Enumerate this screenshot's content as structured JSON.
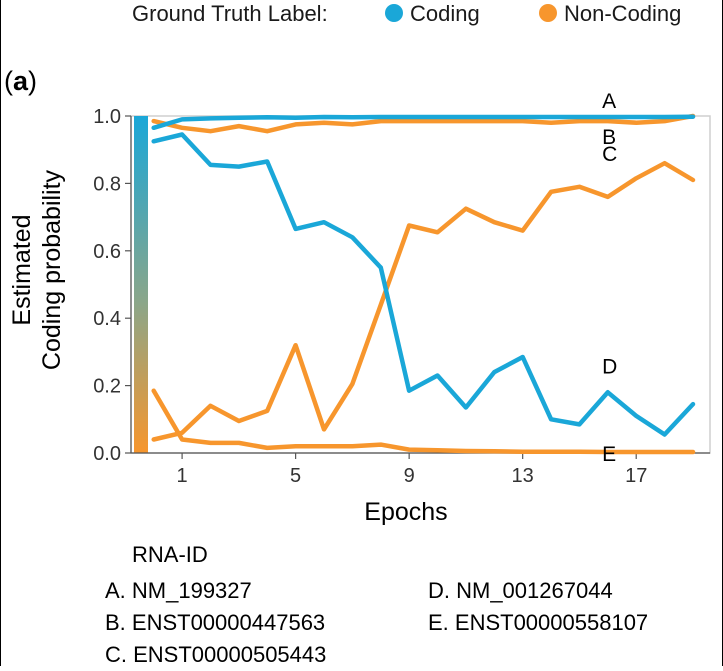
{
  "legend": {
    "title": "Ground Truth Label:",
    "entries": [
      {
        "label": "Coding",
        "color": "#1aa7d8"
      },
      {
        "label": "Non-Coding",
        "color": "#f7962d"
      }
    ]
  },
  "panel_label": {
    "open": "(",
    "letter": "a",
    "close": ")"
  },
  "rna_list": {
    "title": "RNA-ID",
    "items": [
      {
        "text": "A. NM_199327"
      },
      {
        "text": "B. ENST00000447563"
      },
      {
        "text": "C. ENST00000505443"
      },
      {
        "text": "D. NM_001267044"
      },
      {
        "text": "E. ENST00000558107"
      }
    ]
  },
  "chart_data": {
    "type": "line",
    "xlabel": "Epochs",
    "ylabel_lines": [
      "Estimated",
      "Coding probability"
    ],
    "xlim": [
      -0.8,
      19.6
    ],
    "ylim": [
      0,
      1
    ],
    "xticks": [
      1,
      5,
      9,
      13,
      17
    ],
    "yticks": [
      0.0,
      0.2,
      0.4,
      0.6,
      0.8,
      1.0
    ],
    "ytick_labels": [
      "0.0",
      "0.2",
      "0.4",
      "0.6",
      "0.8",
      "1.0"
    ],
    "grid": false,
    "legend_position": "top",
    "colorbar": {
      "top_color": "#1aa7d8",
      "bottom_color": "#f7962d"
    },
    "series": [
      {
        "tag": "A",
        "color": "#1aa7d8",
        "x": [
          0,
          1,
          2,
          3,
          4,
          5,
          6,
          7,
          8,
          9,
          10,
          11,
          12,
          13,
          14,
          15,
          16,
          17,
          18,
          19
        ],
        "y": [
          0.965,
          0.99,
          0.993,
          0.995,
          0.996,
          0.995,
          0.997,
          0.996,
          0.997,
          0.997,
          0.997,
          0.997,
          0.997,
          0.997,
          0.997,
          0.997,
          0.997,
          0.997,
          0.997,
          0.998
        ]
      },
      {
        "tag": "B",
        "color": "#f7962d",
        "x": [
          0,
          1,
          2,
          3,
          4,
          5,
          6,
          7,
          8,
          9,
          10,
          11,
          12,
          13,
          14,
          15,
          16,
          17,
          18,
          19
        ],
        "y": [
          0.985,
          0.965,
          0.955,
          0.97,
          0.955,
          0.975,
          0.98,
          0.975,
          0.985,
          0.985,
          0.985,
          0.985,
          0.985,
          0.985,
          0.98,
          0.985,
          0.985,
          0.98,
          0.985,
          1.0
        ]
      },
      {
        "tag": "C",
        "color": "#f7962d",
        "x": [
          0,
          1,
          2,
          3,
          4,
          5,
          6,
          7,
          8,
          9,
          10,
          11,
          12,
          13,
          14,
          15,
          16,
          17,
          18,
          19
        ],
        "y": [
          0.04,
          0.06,
          0.14,
          0.095,
          0.125,
          0.32,
          0.07,
          0.205,
          0.44,
          0.675,
          0.655,
          0.725,
          0.685,
          0.66,
          0.775,
          0.79,
          0.76,
          0.815,
          0.86,
          0.81
        ]
      },
      {
        "tag": "D",
        "color": "#1aa7d8",
        "x": [
          0,
          1,
          2,
          3,
          4,
          5,
          6,
          7,
          8,
          9,
          10,
          11,
          12,
          13,
          14,
          15,
          16,
          17,
          18,
          19
        ],
        "y": [
          0.925,
          0.945,
          0.855,
          0.85,
          0.865,
          0.665,
          0.685,
          0.64,
          0.55,
          0.185,
          0.23,
          0.135,
          0.24,
          0.285,
          0.1,
          0.085,
          0.18,
          0.11,
          0.055,
          0.145
        ]
      },
      {
        "tag": "E",
        "color": "#f7962d",
        "x": [
          0,
          1,
          2,
          3,
          4,
          5,
          6,
          7,
          8,
          9,
          10,
          11,
          12,
          13,
          14,
          15,
          16,
          17,
          18,
          19
        ],
        "y": [
          0.185,
          0.04,
          0.03,
          0.03,
          0.015,
          0.02,
          0.02,
          0.02,
          0.025,
          0.01,
          0.008,
          0.006,
          0.005,
          0.004,
          0.004,
          0.004,
          0.003,
          0.003,
          0.003,
          0.003
        ]
      }
    ]
  }
}
